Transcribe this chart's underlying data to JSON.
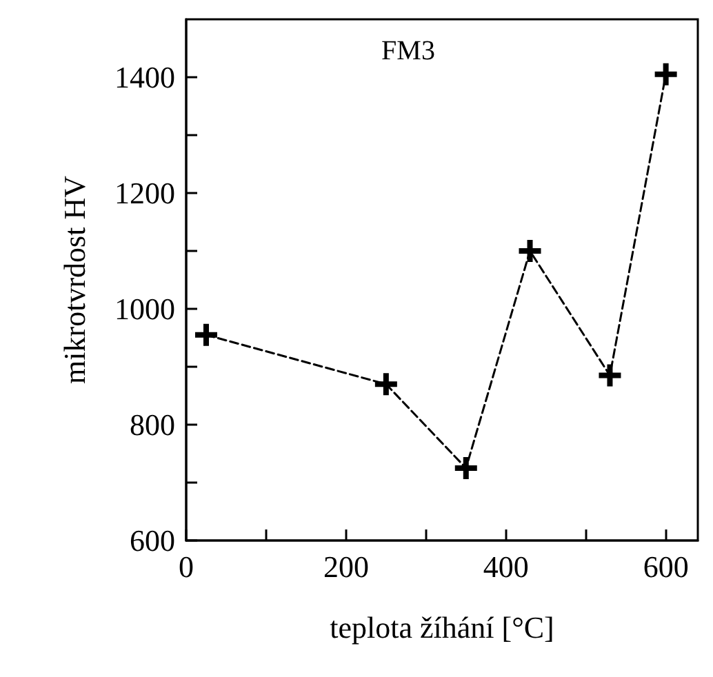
{
  "chart_data": {
    "type": "line",
    "title": "FM3",
    "xlabel": "teplota žíhání [°C]",
    "ylabel": "mikrotvrdost HV",
    "x": [
      25,
      250,
      350,
      430,
      530,
      600
    ],
    "series": [
      {
        "color": "#000000",
        "values": [
          955,
          870,
          725,
          1100,
          885,
          1405
        ]
      }
    ],
    "xlim": [
      0,
      640
    ],
    "xticks": [
      0,
      {
        "value": 100,
        "label": null
      },
      200,
      {
        "value": 300,
        "label": null
      },
      400,
      {
        "value": 500,
        "label": null
      },
      600
    ],
    "ylim": [
      600,
      1500
    ],
    "yticks": [
      600,
      {
        "value": 700,
        "label": null
      },
      800,
      {
        "value": 900,
        "label": null
      },
      1000,
      {
        "value": 1100,
        "label": null
      },
      1200,
      {
        "value": 1300,
        "label": null
      },
      1400
    ],
    "grid": false,
    "marker": "cross",
    "line_style": "dashed"
  }
}
